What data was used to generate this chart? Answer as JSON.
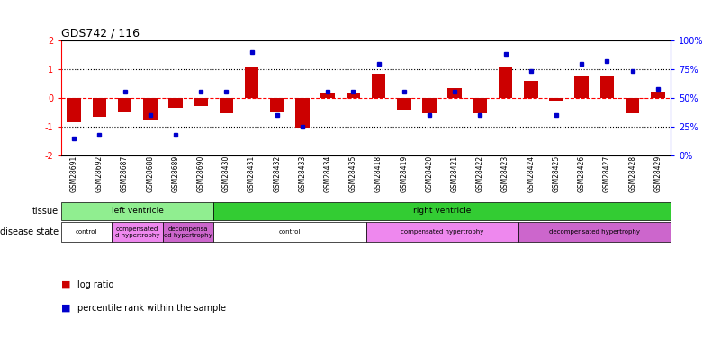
{
  "title": "GDS742 / 116",
  "samples": [
    "GSM28691",
    "GSM28692",
    "GSM28687",
    "GSM28688",
    "GSM28689",
    "GSM28690",
    "GSM28430",
    "GSM28431",
    "GSM28432",
    "GSM28433",
    "GSM28434",
    "GSM28435",
    "GSM28418",
    "GSM28419",
    "GSM28420",
    "GSM28421",
    "GSM28422",
    "GSM28423",
    "GSM28424",
    "GSM28425",
    "GSM28426",
    "GSM28427",
    "GSM28428",
    "GSM28429"
  ],
  "log_ratio": [
    -0.85,
    -0.65,
    -0.5,
    -0.75,
    -0.35,
    -0.3,
    -0.55,
    1.1,
    -0.5,
    -1.05,
    0.15,
    0.15,
    0.85,
    -0.4,
    -0.55,
    0.35,
    -0.55,
    1.1,
    0.6,
    -0.1,
    0.75,
    0.75,
    -0.55,
    0.2
  ],
  "percentile": [
    15,
    18,
    55,
    35,
    18,
    55,
    55,
    90,
    35,
    25,
    55,
    55,
    80,
    55,
    35,
    55,
    35,
    88,
    73,
    35,
    80,
    82,
    73,
    58
  ],
  "log_ratio_color": "#cc0000",
  "percentile_color": "#0000cc",
  "ylim_left": [
    -2,
    2
  ],
  "ylim_right": [
    0,
    100
  ],
  "yticks_left": [
    -2,
    -1,
    0,
    1,
    2
  ],
  "yticks_right": [
    0,
    25,
    50,
    75,
    100
  ],
  "ytick_labels_right": [
    "0%",
    "25%",
    "50%",
    "75%",
    "100%"
  ],
  "tissue_labels": [
    {
      "text": "left ventricle",
      "start": 0,
      "end": 5,
      "color": "#90ee90"
    },
    {
      "text": "right ventricle",
      "start": 6,
      "end": 23,
      "color": "#33cc33"
    }
  ],
  "disease_labels": [
    {
      "text": "control",
      "start": 0,
      "end": 1,
      "color": "#ffffff"
    },
    {
      "text": "compensated\nd hypertrophy",
      "start": 2,
      "end": 3,
      "color": "#ee88ee"
    },
    {
      "text": "decompensa\ned hypertrophy",
      "start": 4,
      "end": 5,
      "color": "#cc66cc"
    },
    {
      "text": "control",
      "start": 6,
      "end": 11,
      "color": "#ffffff"
    },
    {
      "text": "compensated hypertrophy",
      "start": 12,
      "end": 17,
      "color": "#ee88ee"
    },
    {
      "text": "decompensated hypertrophy",
      "start": 18,
      "end": 23,
      "color": "#cc66cc"
    }
  ],
  "tissue_row_label": "tissue",
  "disease_row_label": "disease state",
  "legend_log_ratio": "log ratio",
  "legend_percentile": "percentile rank within the sample",
  "bar_width": 0.55,
  "background_color": "#ffffff"
}
